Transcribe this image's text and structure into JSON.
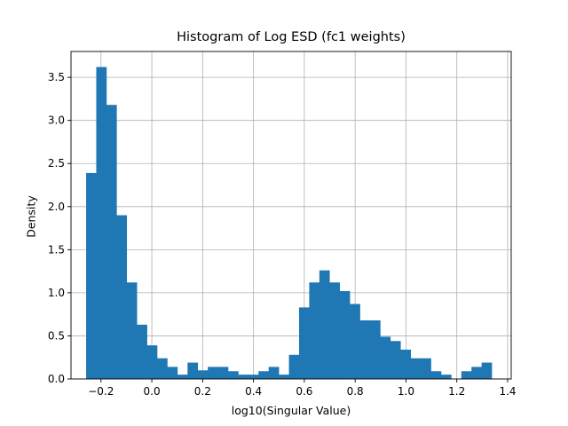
{
  "chart_data": {
    "type": "bar",
    "title": "Histogram of Log ESD (fc1 weights)",
    "xlabel": "log10(Singular Value)",
    "ylabel": "Density",
    "xlim": [
      -0.318,
      1.414
    ],
    "ylim": [
      0,
      3.8
    ],
    "grid": true,
    "bar_color": "#1f77b4",
    "x_ticks": [
      -0.2,
      0.0,
      0.2,
      0.4,
      0.6,
      0.8,
      1.0,
      1.2,
      1.4
    ],
    "x_tick_labels": [
      "−0.2",
      "0.0",
      "0.2",
      "0.4",
      "0.6",
      "0.8",
      "1.0",
      "1.2",
      "1.4"
    ],
    "y_ticks": [
      0.0,
      0.5,
      1.0,
      1.5,
      2.0,
      2.5,
      3.0,
      3.5
    ],
    "y_tick_labels": [
      "0.0",
      "0.5",
      "1.0",
      "1.5",
      "2.0",
      "2.5",
      "3.0",
      "3.5"
    ],
    "bin_start": -0.2585,
    "bin_width": 0.0399,
    "values": [
      2.39,
      3.62,
      3.18,
      1.9,
      1.12,
      0.63,
      0.39,
      0.24,
      0.14,
      0.05,
      0.19,
      0.1,
      0.14,
      0.14,
      0.09,
      0.05,
      0.05,
      0.09,
      0.14,
      0.05,
      0.28,
      0.83,
      1.12,
      1.26,
      1.12,
      1.02,
      0.87,
      0.68,
      0.68,
      0.49,
      0.44,
      0.34,
      0.24,
      0.24,
      0.09,
      0.05,
      0.0,
      0.09,
      0.14,
      0.19
    ]
  }
}
